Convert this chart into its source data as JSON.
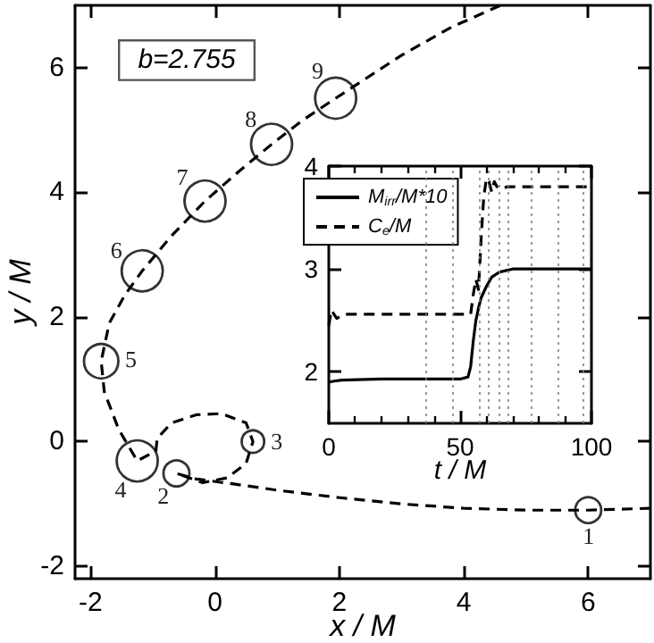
{
  "chart_data": [
    {
      "type": "line",
      "xlabel": "x / M",
      "ylabel": "y / M",
      "xlim": [
        -2.25,
        7
      ],
      "ylim": [
        -2.2,
        7
      ],
      "xticks": [
        -2,
        0,
        2,
        4,
        6
      ],
      "yticks": [
        -2,
        0,
        2,
        4,
        6
      ],
      "grid": false,
      "legend": false,
      "marker": "none",
      "line_style": "dashed",
      "series": [
        {
          "color": "#000000",
          "x": [
            7,
            6,
            5,
            4,
            3,
            2,
            1,
            0.3,
            -0.3,
            -0.62,
            -0.2,
            0.2,
            0.5,
            0.61,
            0.5,
            0.1,
            -0.3,
            -0.7,
            -0.93,
            -0.95,
            -1.25,
            -1.55,
            -1.78,
            -1.83,
            -1.7,
            -1.45,
            -1.17,
            -0.7,
            -0.16,
            0.4,
            0.91,
            1.4,
            1.94,
            3,
            3.8,
            4.59
          ],
          "values": [
            -1.07,
            -1.1,
            -1.1,
            -1.07,
            -1.0,
            -0.9,
            -0.78,
            -0.68,
            -0.6,
            -0.51,
            -0.66,
            -0.58,
            -0.35,
            0,
            0.3,
            0.45,
            0.43,
            0.3,
            0.05,
            -0.15,
            -0.31,
            0.2,
            0.8,
            1.29,
            1.9,
            2.35,
            2.74,
            3.3,
            3.86,
            4.35,
            4.77,
            5.15,
            5.51,
            6.2,
            6.65,
            7
          ]
        },
        {
          "type": "bubble",
          "color": "#000000",
          "marker": "circle",
          "x": [
            6.0,
            -0.62,
            0.61,
            -1.25,
            -1.83,
            -1.17,
            -0.16,
            0.91,
            1.94
          ],
          "values": [
            -1.1,
            -0.51,
            0,
            -0.31,
            1.29,
            2.74,
            3.86,
            4.77,
            5.51
          ],
          "sizes": [
            0.4,
            0.4,
            0.3,
            1,
            0.7,
            1,
            1,
            1,
            1
          ]
        }
      ],
      "annotations": [
        "b=2.755",
        {
          "text": "1",
          "x": 6.0,
          "y": -1.1
        },
        {
          "text": "2",
          "x": -0.62,
          "y": -0.51
        },
        {
          "text": "3",
          "x": 0.61,
          "y": 0
        },
        {
          "text": "4",
          "x": -1.25,
          "y": -0.31
        },
        {
          "text": "5",
          "x": -1.83,
          "y": 1.29
        },
        {
          "text": "6",
          "x": -1.17,
          "y": 2.74
        },
        {
          "text": "7",
          "x": -0.16,
          "y": 3.86
        },
        {
          "text": "8",
          "x": 0.91,
          "y": 4.77
        },
        {
          "text": "9",
          "x": 1.94,
          "y": 5.51
        }
      ]
    },
    {
      "type": "line",
      "xlabel": "t / M",
      "xlim": [
        0,
        100
      ],
      "ylim": [
        1.5,
        4
      ],
      "xticks": [
        0,
        50,
        100
      ],
      "yticks": [
        2,
        3,
        4
      ],
      "grid": false,
      "legend": "top left",
      "marker": "none",
      "series": [
        {
          "name": "M$_{irr}$/M*10",
          "color": "#000000",
          "line_style": "solid",
          "x": [
            0,
            2,
            5,
            20,
            40,
            50,
            53,
            54,
            55,
            56,
            57,
            58,
            60,
            62,
            65,
            70,
            80,
            100
          ],
          "values": [
            1.9,
            1.91,
            1.92,
            1.93,
            1.93,
            1.93,
            1.95,
            2.05,
            2.3,
            2.5,
            2.62,
            2.72,
            2.83,
            2.92,
            2.97,
            3.0,
            3.0,
            3.0
          ]
        },
        {
          "name": "C$_{e}$/M",
          "color": "#000000",
          "line_style": "dashed",
          "x": [
            0,
            1,
            3,
            6,
            20,
            40,
            54,
            55,
            56,
            57,
            58,
            59,
            60,
            61,
            62,
            63,
            64,
            66,
            68,
            70,
            80,
            100
          ],
          "values": [
            2.45,
            2.6,
            2.52,
            2.56,
            2.56,
            2.56,
            2.56,
            2.75,
            2.9,
            2.8,
            3.3,
            3.7,
            3.88,
            3.85,
            3.75,
            3.85,
            3.8,
            3.78,
            3.8,
            3.8,
            3.8,
            3.8
          ]
        }
      ],
      "ref_lines": [
        {
          "axis": "x",
          "value": 37,
          "line_style": "dotted",
          "color": "#808080"
        },
        {
          "axis": "x",
          "value": 47,
          "line_style": "dotted",
          "color": "#808080"
        },
        {
          "axis": "x",
          "value": 57,
          "line_style": "dotted",
          "color": "#808080"
        },
        {
          "axis": "x",
          "value": 61,
          "line_style": "dotted",
          "color": "#808080"
        },
        {
          "axis": "x",
          "value": 65,
          "line_style": "dotted",
          "color": "#808080"
        },
        {
          "axis": "x",
          "value": 68,
          "line_style": "dotted",
          "color": "#808080"
        },
        {
          "axis": "x",
          "value": 77,
          "line_style": "dotted",
          "color": "#808080"
        },
        {
          "axis": "x",
          "value": 87,
          "line_style": "dotted",
          "color": "#808080"
        },
        {
          "axis": "x",
          "value": 97,
          "line_style": "dotted",
          "color": "#808080"
        }
      ]
    }
  ]
}
